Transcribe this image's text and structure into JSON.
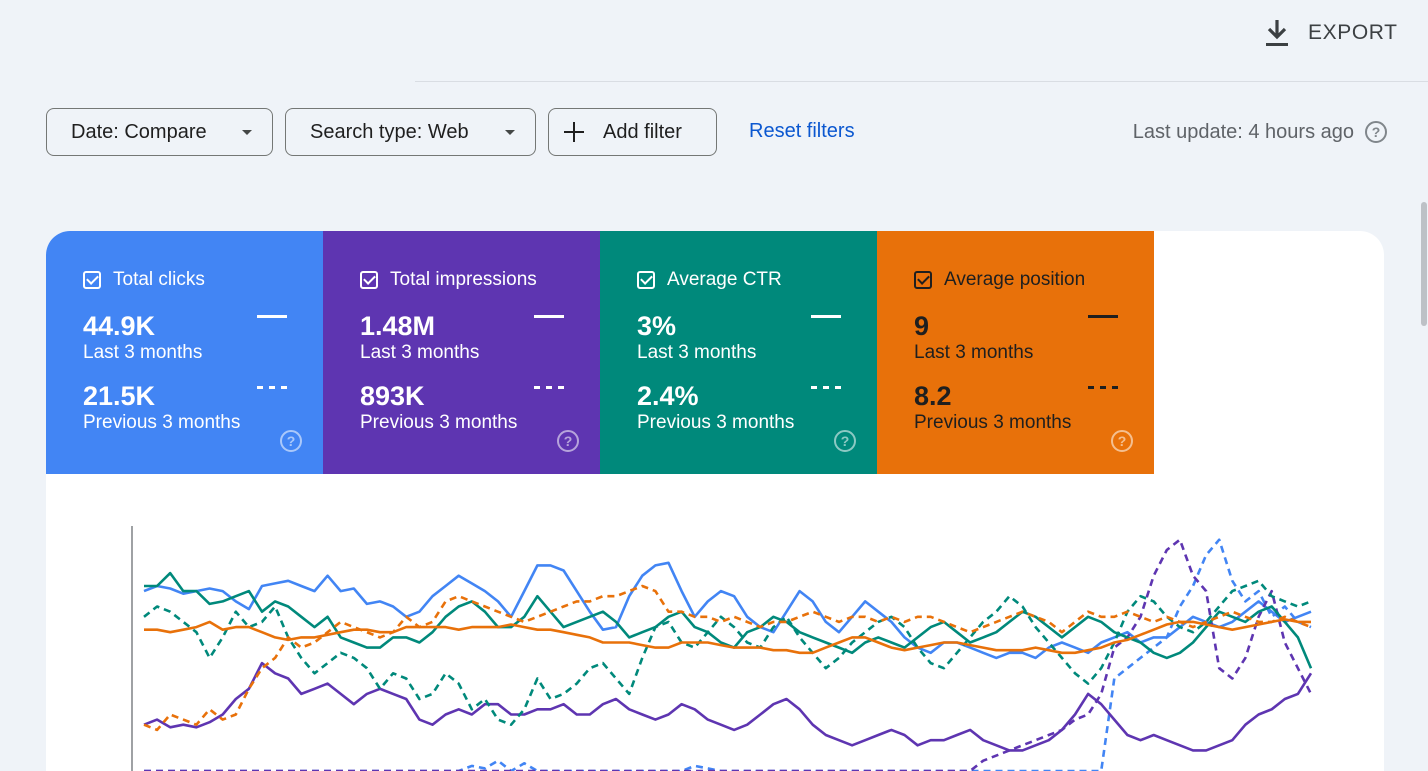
{
  "toolbar": {
    "export_label": "EXPORT",
    "export_icon": "download-icon"
  },
  "filters": {
    "date_label": "Date: Compare",
    "search_type_label": "Search type: Web",
    "add_filter_label": "Add filter",
    "reset_label": "Reset filters",
    "last_update": "Last update: 4 hours ago"
  },
  "metrics": [
    {
      "name": "Total clicks",
      "current": "44.9K",
      "current_period": "Last 3 months",
      "previous": "21.5K",
      "previous_period": "Previous 3 months",
      "checked": true,
      "color": "#4285f4"
    },
    {
      "name": "Total impressions",
      "current": "1.48M",
      "current_period": "Last 3 months",
      "previous": "893K",
      "previous_period": "Previous 3 months",
      "checked": true,
      "color": "#5e35b1"
    },
    {
      "name": "Average CTR",
      "current": "3%",
      "current_period": "Last 3 months",
      "previous": "2.4%",
      "previous_period": "Previous 3 months",
      "checked": true,
      "color": "#00897b"
    },
    {
      "name": "Average position",
      "current": "9",
      "current_period": "Last 3 months",
      "previous": "8.2",
      "previous_period": "Previous 3 months",
      "checked": true,
      "color": "#e8710a"
    }
  ],
  "chart_data": {
    "type": "line",
    "x": [
      1,
      2,
      3,
      4,
      5,
      6,
      7,
      8,
      9,
      10,
      11,
      12,
      13,
      14,
      15,
      16,
      17,
      18,
      19,
      20,
      21,
      22,
      23,
      24,
      25,
      26,
      27,
      28,
      29,
      30,
      31,
      32,
      33,
      34,
      35,
      36,
      37,
      38,
      39,
      40,
      41,
      42,
      43,
      44,
      45,
      46,
      47,
      48,
      49,
      50,
      51,
      52,
      53,
      54,
      55,
      56,
      57,
      58,
      59,
      60,
      61,
      62,
      63,
      64,
      65,
      66,
      67,
      68,
      69,
      70,
      71,
      72,
      73,
      74,
      75,
      76,
      77,
      78,
      79,
      80,
      81,
      82,
      83,
      84,
      85,
      86,
      87,
      88,
      89,
      90
    ],
    "ylim": [
      0,
      100
    ],
    "series": [
      {
        "metric": "Total clicks",
        "period": "current",
        "color": "#4285f4",
        "dash": false,
        "values": [
          70,
          72,
          71,
          69,
          70,
          71,
          70,
          66,
          63,
          72,
          73,
          74,
          72,
          70,
          76,
          70,
          71,
          65,
          66,
          64,
          60,
          62,
          68,
          72,
          76,
          73,
          70,
          66,
          60,
          70,
          80,
          80,
          78,
          70,
          62,
          55,
          56,
          68,
          76,
          80,
          81,
          70,
          60,
          66,
          70,
          68,
          60,
          56,
          54,
          62,
          70,
          66,
          58,
          54,
          60,
          66,
          62,
          58,
          52,
          48,
          46,
          50,
          50,
          48,
          46,
          44,
          46,
          46,
          44,
          48,
          50,
          48,
          46,
          50,
          52,
          54,
          50,
          52,
          52,
          56,
          60,
          58,
          56,
          58,
          62,
          66,
          62,
          58,
          60,
          62
        ]
      },
      {
        "metric": "Total clicks",
        "period": "previous",
        "color": "#4285f4",
        "dash": true,
        "values": [
          0,
          0,
          0,
          0,
          0,
          0,
          0,
          0,
          0,
          0,
          0,
          0,
          0,
          0,
          0,
          0,
          0,
          0,
          0,
          0,
          0,
          0,
          0,
          0,
          0,
          2,
          1,
          4,
          0,
          3,
          0,
          0,
          0,
          0,
          0,
          0,
          0,
          0,
          0,
          0,
          0,
          0,
          2,
          1,
          0,
          0,
          0,
          0,
          0,
          0,
          0,
          0,
          0,
          0,
          0,
          0,
          0,
          0,
          0,
          0,
          0,
          0,
          0,
          0,
          0,
          0,
          0,
          0,
          0,
          0,
          0,
          0,
          0,
          0,
          36,
          40,
          44,
          48,
          52,
          64,
          72,
          84,
          90,
          74,
          66,
          70,
          60,
          64,
          58,
          56
        ]
      },
      {
        "metric": "Total impressions",
        "period": "current",
        "color": "#5e35b1",
        "dash": false,
        "values": [
          18,
          20,
          17,
          18,
          17,
          19,
          22,
          28,
          32,
          42,
          38,
          36,
          30,
          32,
          34,
          30,
          26,
          30,
          32,
          30,
          28,
          20,
          18,
          22,
          24,
          22,
          26,
          26,
          22,
          22,
          24,
          24,
          26,
          22,
          22,
          26,
          28,
          24,
          22,
          20,
          22,
          26,
          24,
          20,
          18,
          16,
          18,
          22,
          26,
          28,
          24,
          18,
          14,
          12,
          10,
          12,
          14,
          16,
          14,
          10,
          12,
          12,
          14,
          16,
          12,
          10,
          8,
          8,
          10,
          12,
          16,
          22,
          30,
          26,
          20,
          14,
          12,
          14,
          12,
          10,
          8,
          8,
          10,
          12,
          18,
          22,
          24,
          28,
          30,
          38
        ]
      },
      {
        "metric": "Total impressions",
        "period": "previous",
        "color": "#5e35b1",
        "dash": true,
        "values": [
          0,
          0,
          0,
          0,
          0,
          0,
          0,
          0,
          0,
          0,
          0,
          0,
          0,
          0,
          0,
          0,
          0,
          0,
          0,
          0,
          0,
          0,
          0,
          0,
          0,
          0,
          0,
          0,
          0,
          0,
          0,
          0,
          0,
          0,
          0,
          0,
          0,
          0,
          0,
          0,
          0,
          0,
          0,
          0,
          0,
          0,
          0,
          0,
          0,
          0,
          0,
          0,
          0,
          0,
          0,
          0,
          0,
          0,
          0,
          0,
          0,
          0,
          0,
          0,
          4,
          6,
          8,
          10,
          12,
          14,
          16,
          20,
          22,
          30,
          48,
          52,
          60,
          76,
          86,
          90,
          76,
          70,
          40,
          36,
          44,
          60,
          70,
          50,
          40,
          30
        ]
      },
      {
        "metric": "Average CTR",
        "period": "current",
        "color": "#00897b",
        "dash": false,
        "values": [
          72,
          72,
          77,
          70,
          70,
          65,
          66,
          68,
          70,
          62,
          66,
          64,
          60,
          56,
          60,
          52,
          50,
          48,
          48,
          52,
          52,
          50,
          54,
          60,
          64,
          66,
          62,
          56,
          56,
          60,
          68,
          62,
          56,
          58,
          60,
          62,
          58,
          52,
          54,
          56,
          60,
          62,
          56,
          54,
          50,
          48,
          54,
          56,
          60,
          58,
          54,
          52,
          50,
          48,
          46,
          50,
          52,
          50,
          48,
          52,
          56,
          58,
          54,
          50,
          52,
          54,
          58,
          62,
          60,
          56,
          52,
          56,
          60,
          58,
          54,
          52,
          50,
          46,
          44,
          46,
          50,
          56,
          62,
          60,
          58,
          62,
          64,
          58,
          52,
          40
        ]
      },
      {
        "metric": "Average CTR",
        "period": "previous",
        "color": "#00897b",
        "dash": true,
        "values": [
          60,
          64,
          62,
          58,
          54,
          44,
          52,
          62,
          56,
          58,
          64,
          52,
          44,
          38,
          42,
          46,
          44,
          40,
          32,
          38,
          36,
          28,
          30,
          38,
          34,
          24,
          28,
          20,
          18,
          24,
          36,
          28,
          30,
          34,
          40,
          42,
          36,
          30,
          44,
          56,
          58,
          50,
          48,
          54,
          60,
          56,
          50,
          48,
          56,
          60,
          52,
          46,
          40,
          44,
          50,
          54,
          58,
          60,
          56,
          48,
          42,
          40,
          46,
          52,
          58,
          62,
          68,
          64,
          56,
          50,
          44,
          38,
          34,
          40,
          50,
          62,
          68,
          66,
          60,
          56,
          54,
          58,
          64,
          70,
          72,
          74,
          68,
          66,
          64,
          66
        ]
      },
      {
        "metric": "Average position",
        "period": "current",
        "color": "#e8710a",
        "dash": false,
        "values": [
          55,
          55,
          54,
          55,
          56,
          58,
          55,
          56,
          56,
          54,
          52,
          51,
          52,
          52,
          53,
          54,
          55,
          55,
          54,
          54,
          56,
          56,
          56,
          56,
          55,
          56,
          56,
          56,
          57,
          56,
          55,
          55,
          54,
          53,
          52,
          50,
          50,
          50,
          49,
          48,
          48,
          50,
          50,
          50,
          49,
          48,
          48,
          48,
          47,
          47,
          46,
          46,
          48,
          50,
          52,
          52,
          50,
          48,
          47,
          48,
          49,
          50,
          50,
          49,
          48,
          47,
          47,
          47,
          48,
          47,
          46,
          46,
          47,
          48,
          50,
          51,
          53,
          55,
          57,
          58,
          58,
          57,
          56,
          55,
          56,
          57,
          58,
          59,
          58,
          58
        ]
      },
      {
        "metric": "Average position",
        "period": "previous",
        "color": "#e8710a",
        "dash": true,
        "values": [
          18,
          16,
          22,
          20,
          18,
          24,
          20,
          22,
          32,
          40,
          44,
          52,
          48,
          50,
          54,
          58,
          56,
          54,
          52,
          54,
          60,
          56,
          58,
          66,
          68,
          66,
          64,
          62,
          60,
          58,
          60,
          62,
          64,
          66,
          66,
          68,
          68,
          70,
          72,
          70,
          62,
          62,
          60,
          60,
          58,
          60,
          58,
          56,
          58,
          58,
          60,
          62,
          60,
          58,
          60,
          60,
          58,
          60,
          58,
          60,
          60,
          58,
          56,
          54,
          56,
          58,
          60,
          62,
          60,
          58,
          54,
          58,
          62,
          60,
          60,
          62,
          60,
          58,
          60,
          58,
          56,
          58,
          60,
          62,
          60,
          58,
          58,
          60,
          58,
          56
        ]
      }
    ]
  }
}
